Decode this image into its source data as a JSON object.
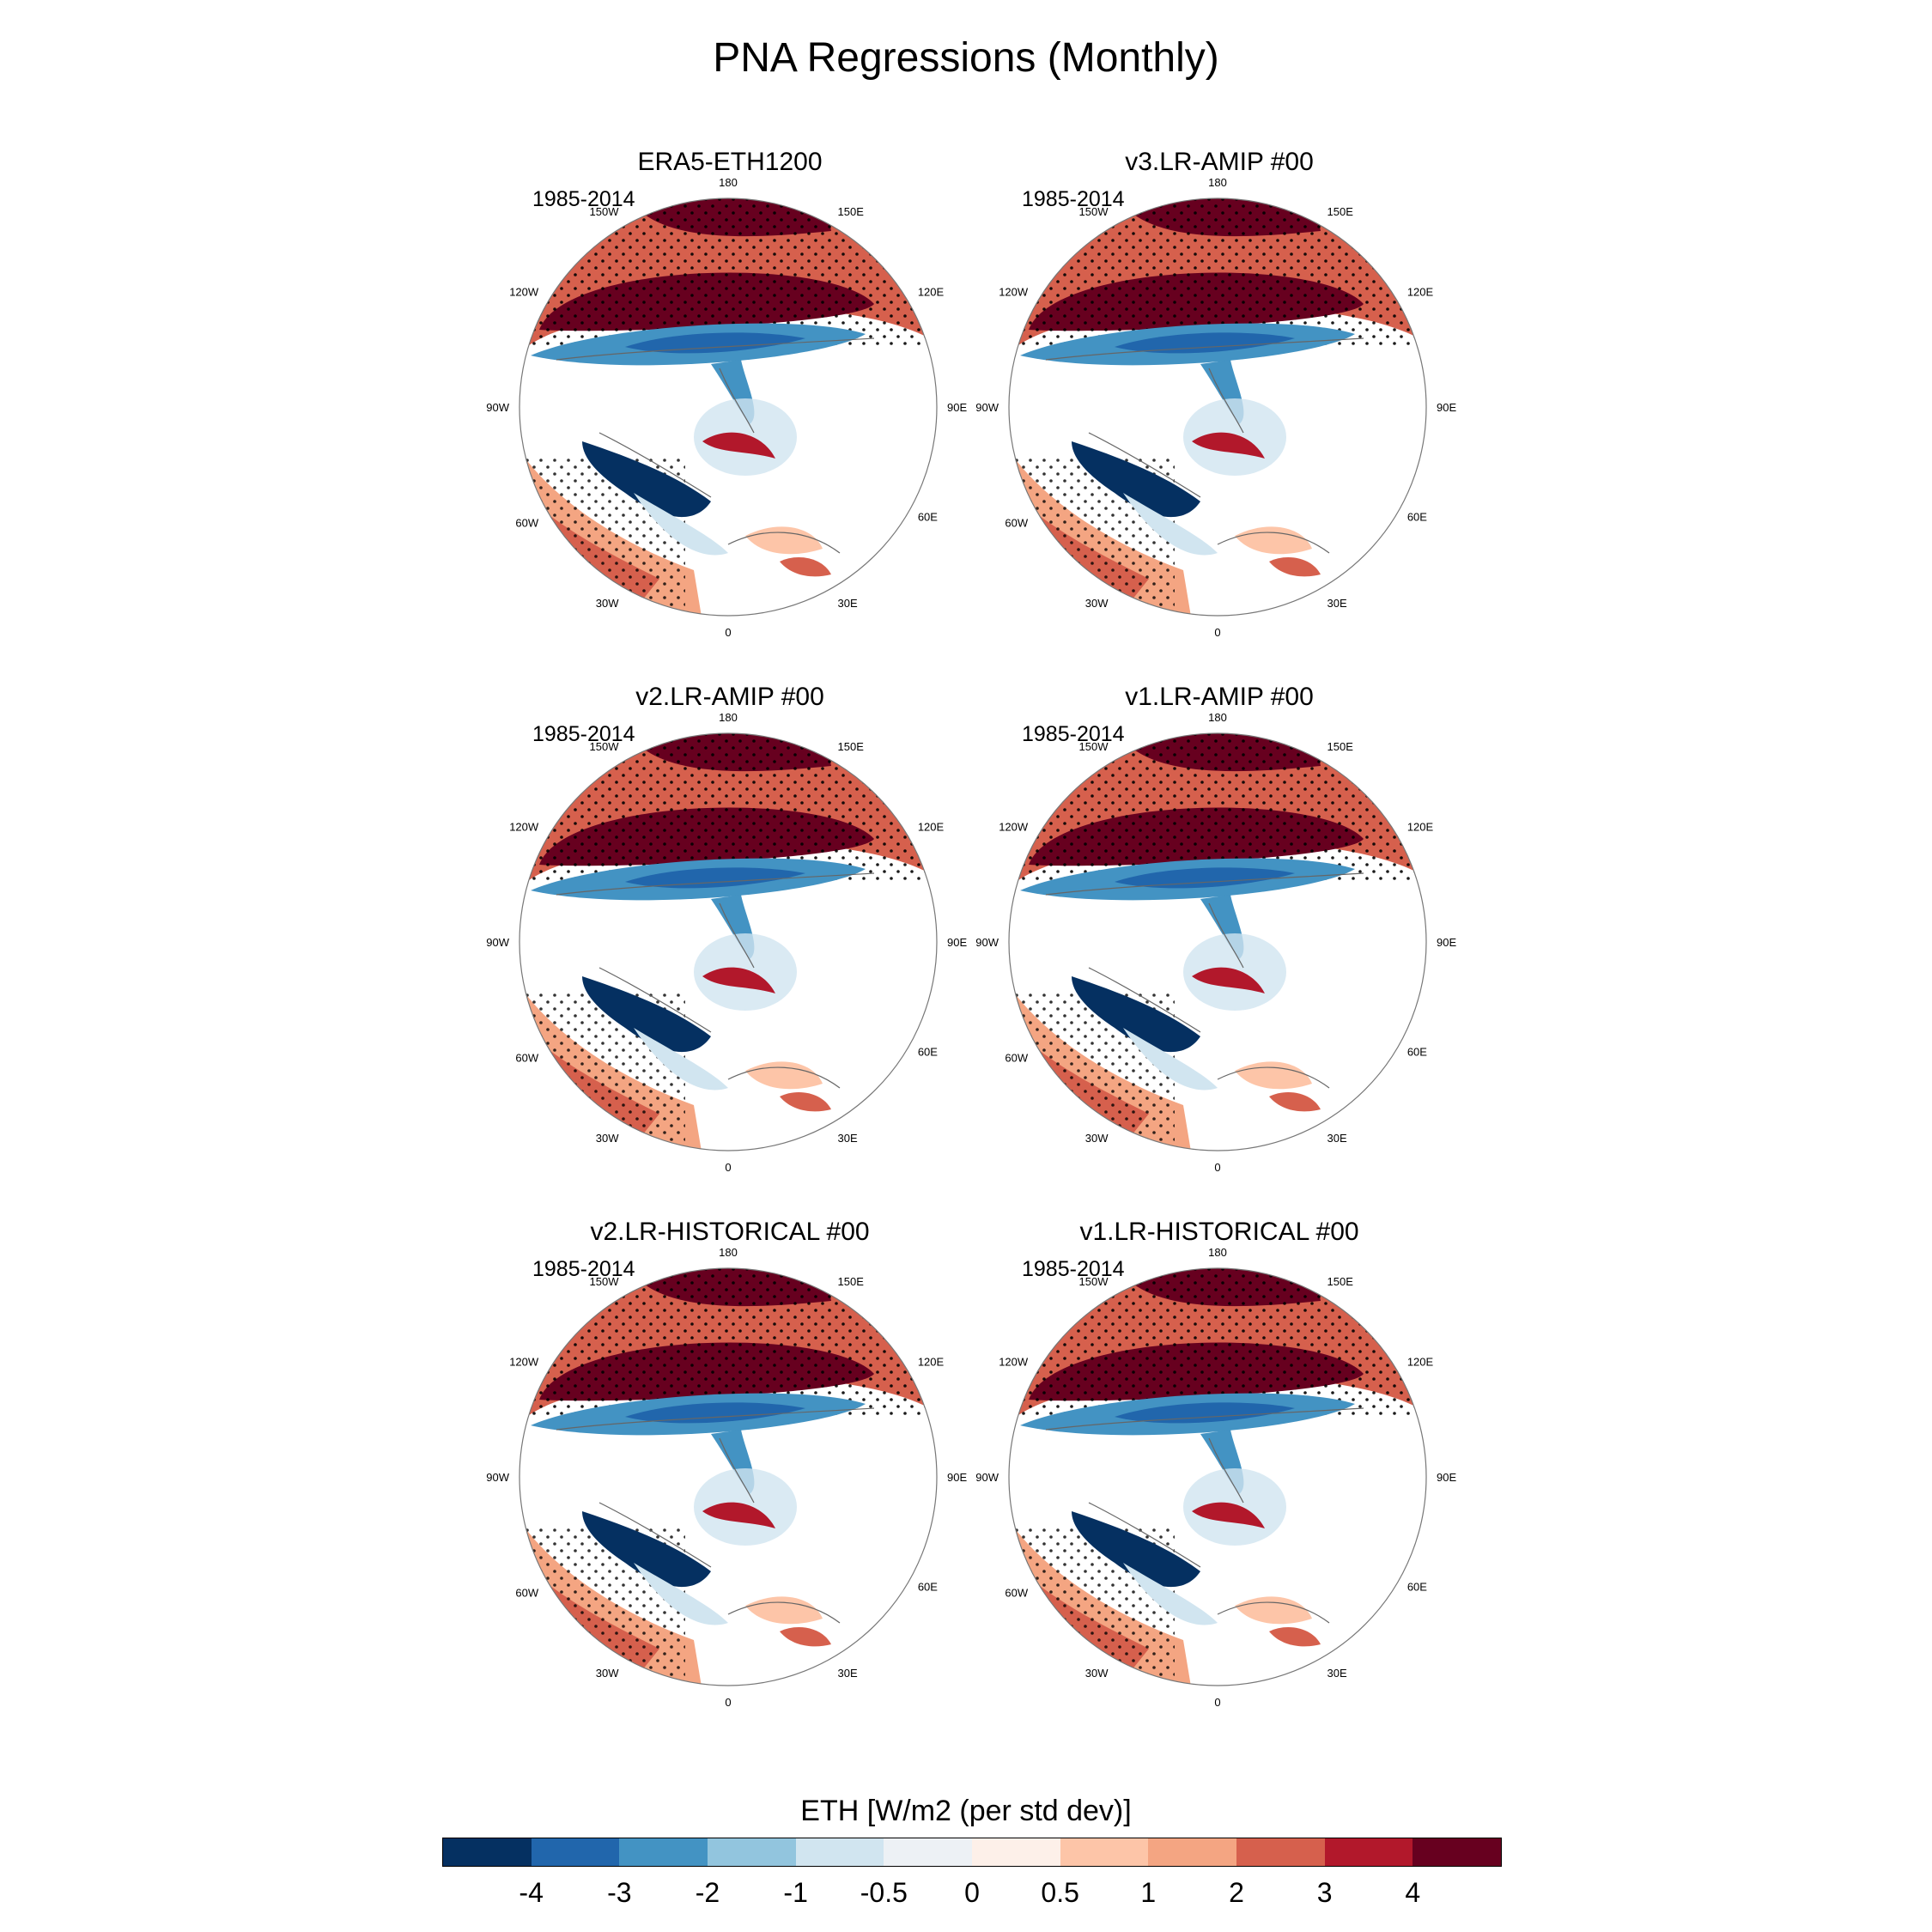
{
  "title": "PNA Regressions (Monthly)",
  "panels": [
    {
      "title": "ERA5-ETH1200",
      "period": "1985-2014"
    },
    {
      "title": "v3.LR-AMIP  #00",
      "period": "1985-2014"
    },
    {
      "title": "v2.LR-AMIP  #00",
      "period": "1985-2014"
    },
    {
      "title": "v1.LR-AMIP  #00",
      "period": "1985-2014"
    },
    {
      "title": "v2.LR-HISTORICAL  #00",
      "period": "1985-2014"
    },
    {
      "title": "v1.LR-HISTORICAL  #00",
      "period": "1985-2014"
    }
  ],
  "longitude_labels": [
    "180",
    "150E",
    "120E",
    "90E",
    "60E",
    "30E",
    "0",
    "30W",
    "60W",
    "90W",
    "120W",
    "150W"
  ],
  "colorbar": {
    "title": "ETH [W/m2 (per std dev)]",
    "ticks": [
      "-4",
      "-3",
      "-2",
      "-1",
      "-0.5",
      "0",
      "0.5",
      "1",
      "2",
      "3",
      "4"
    ],
    "colors": [
      "#053061",
      "#2166ac",
      "#4393c3",
      "#92c5de",
      "#d1e5f0",
      "#edf1f5",
      "#fdf0e9",
      "#fdc5a8",
      "#f4a582",
      "#d6604d",
      "#b2182b",
      "#67001f"
    ]
  }
}
